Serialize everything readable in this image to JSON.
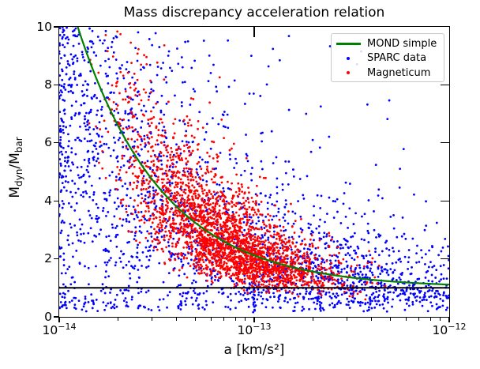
{
  "chart_data": {
    "type": "scatter",
    "title": "Mass discrepancy acceleration relation",
    "xlabel": "a [km/s²]",
    "ylabel": "M_dyn/M_bar",
    "ylabel_parts": {
      "m1": "M",
      "sub1": "dyn",
      "m2": "/M",
      "sub2": "bar"
    },
    "x_scale": "log",
    "x_log_range": [
      -14,
      -12
    ],
    "ylim": [
      0,
      10
    ],
    "grid": false,
    "xticks": [
      {
        "lg": -14,
        "base": "10",
        "exp": "−14"
      },
      {
        "lg": -13,
        "base": "10",
        "exp": "−13"
      },
      {
        "lg": -12,
        "base": "10",
        "exp": "−12"
      }
    ],
    "x_minor_multipliers": [
      2,
      3,
      4,
      5,
      6,
      7,
      8,
      9
    ],
    "x_minor_decades": [
      -14,
      -13
    ],
    "yticks": [
      {
        "v": 0,
        "label": "0"
      },
      {
        "v": 2,
        "label": "2"
      },
      {
        "v": 4,
        "label": "4"
      },
      {
        "v": 6,
        "label": "6"
      },
      {
        "v": 8,
        "label": "8"
      },
      {
        "v": 10,
        "label": "10"
      }
    ],
    "right_tick_values": [
      2,
      4,
      6,
      8
    ],
    "top_tick_lgs": [
      -13
    ],
    "reference_line": {
      "y": 1,
      "color": "#000000",
      "width": 2
    },
    "curve": {
      "label": "MOND simple",
      "color": "#008000",
      "width": 2.2,
      "formula": "Mdyn/Mbar = 1 + a0/a",
      "a0_km_s2": 1.12e-13
    },
    "series": [
      {
        "name": "SPARC data",
        "color": "#0000ff",
        "marker": "dot",
        "marker_radius": 1.4,
        "generator": {
          "seed": 1337,
          "trend": {
            "count": 2000,
            "x_pow": 1.6,
            "sigma_dex": 0.27
          },
          "uniform": {
            "count": 330,
            "x_pow": 2.0,
            "x_span": 1.7,
            "v_min": 0.3,
            "v_max": 10,
            "v_pow": 1.6
          },
          "below_line": {
            "count": 170,
            "v_min": 0.18,
            "v_max": 1.0
          },
          "trails": {
            "n_trails": 14,
            "points": 12,
            "lg_min": -13.05,
            "lg_max": -12.45,
            "v_min": 1.4,
            "v_max": 4.2,
            "lg_step": 0.035,
            "v_decay": 0.045
          },
          "vertical_string": {
            "count": 28,
            "lg": -13.0,
            "v_min": 0.15,
            "v_max": 1.45
          }
        }
      },
      {
        "name": "Magneticum",
        "color": "#ff0000",
        "marker": "dot",
        "marker_radius": 1.4,
        "generator": {
          "seed": 777,
          "count": 2700,
          "lg_mean": -13.15,
          "lg_sigma": 0.27,
          "lg_min": -13.85,
          "lg_max": -12.2,
          "sigma_dex": 0.14
        }
      }
    ],
    "legend": {
      "position": "upper right",
      "items": [
        {
          "label": "MOND simple",
          "type": "line",
          "color": "#008000"
        },
        {
          "label": "SPARC data",
          "type": "dot",
          "color": "#0000ff"
        },
        {
          "label": "Magneticum",
          "type": "dot",
          "color": "#ff0000"
        }
      ]
    }
  }
}
